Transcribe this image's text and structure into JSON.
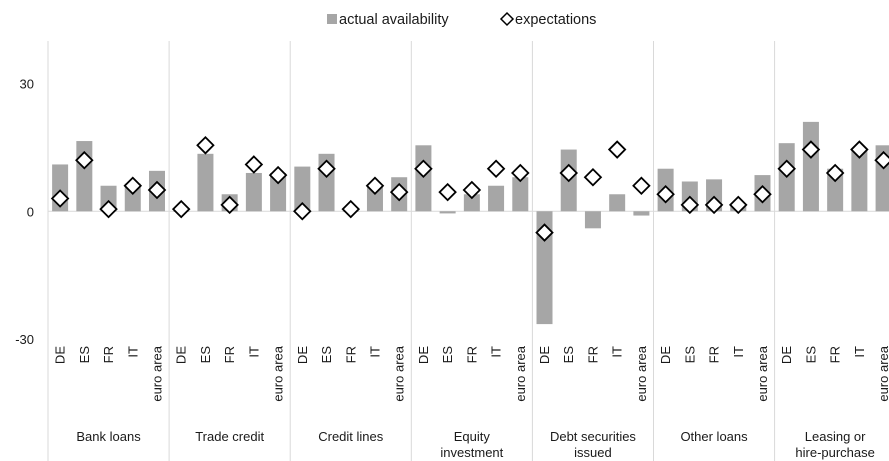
{
  "chart_data": {
    "type": "bar",
    "legend": {
      "position": "top",
      "items": [
        {
          "key": "actual",
          "label": "actual availability",
          "marker": "square"
        },
        {
          "key": "expectations",
          "label": "expectations",
          "marker": "diamond"
        }
      ]
    },
    "y_axis": {
      "ylim": [
        -30,
        40
      ],
      "ticks": [
        30,
        0,
        -30
      ],
      "tick_labels": [
        "30",
        "0",
        "-30"
      ]
    },
    "colors": {
      "bar": "#a6a6a6",
      "marker_fill": "#ffffff",
      "marker_stroke": "#000000",
      "gridline": "#d9d9d9",
      "zero_line": "#d9d9d9"
    },
    "groups": [
      {
        "name": "Bank loans",
        "label_lines": [
          "Bank loans"
        ],
        "categories": [
          "DE",
          "ES",
          "FR",
          "IT",
          "euro area"
        ],
        "actual": [
          11,
          16.5,
          6,
          6.5,
          9.5
        ],
        "expectations": [
          3,
          12,
          0.5,
          6,
          5
        ]
      },
      {
        "name": "Trade credit",
        "label_lines": [
          "Trade credit"
        ],
        "categories": [
          "DE",
          "ES",
          "FR",
          "IT",
          "euro area"
        ],
        "actual": [
          0,
          13.5,
          4,
          9,
          9
        ],
        "expectations": [
          0.5,
          15.5,
          1.5,
          11,
          8.5
        ]
      },
      {
        "name": "Credit lines",
        "label_lines": [
          "Credit lines"
        ],
        "categories": [
          "DE",
          "ES",
          "FR",
          "IT",
          "euro area"
        ],
        "actual": [
          10.5,
          13.5,
          0,
          6,
          8
        ],
        "expectations": [
          0,
          10,
          0.5,
          6,
          4.5
        ]
      },
      {
        "name": "Equity investment",
        "label_lines": [
          "Equity",
          "investment"
        ],
        "categories": [
          "DE",
          "ES",
          "FR",
          "IT",
          "euro area"
        ],
        "actual": [
          15.5,
          -0.5,
          4,
          6,
          8
        ],
        "expectations": [
          10,
          4.5,
          5,
          10,
          9
        ]
      },
      {
        "name": "Debt securities issued",
        "label_lines": [
          "Debt securities",
          "issued"
        ],
        "categories": [
          "DE",
          "ES",
          "FR",
          "IT",
          "euro area"
        ],
        "actual": [
          -26.5,
          14.5,
          -4,
          4,
          -1
        ],
        "expectations": [
          -5,
          9,
          8,
          14.5,
          6
        ]
      },
      {
        "name": "Other loans",
        "label_lines": [
          "Other loans"
        ],
        "categories": [
          "DE",
          "ES",
          "FR",
          "IT",
          "euro area"
        ],
        "actual": [
          10,
          7,
          7.5,
          1.5,
          8.5
        ],
        "expectations": [
          4,
          1.5,
          1.5,
          1.5,
          4
        ]
      },
      {
        "name": "Leasing or hire-purchase",
        "label_lines": [
          "Leasing or",
          "hire-purchase"
        ],
        "categories": [
          "DE",
          "ES",
          "FR",
          "IT",
          "euro area"
        ],
        "actual": [
          16,
          21,
          10,
          14.5,
          15.5
        ],
        "expectations": [
          10,
          14.5,
          9,
          14.5,
          12
        ]
      }
    ]
  }
}
